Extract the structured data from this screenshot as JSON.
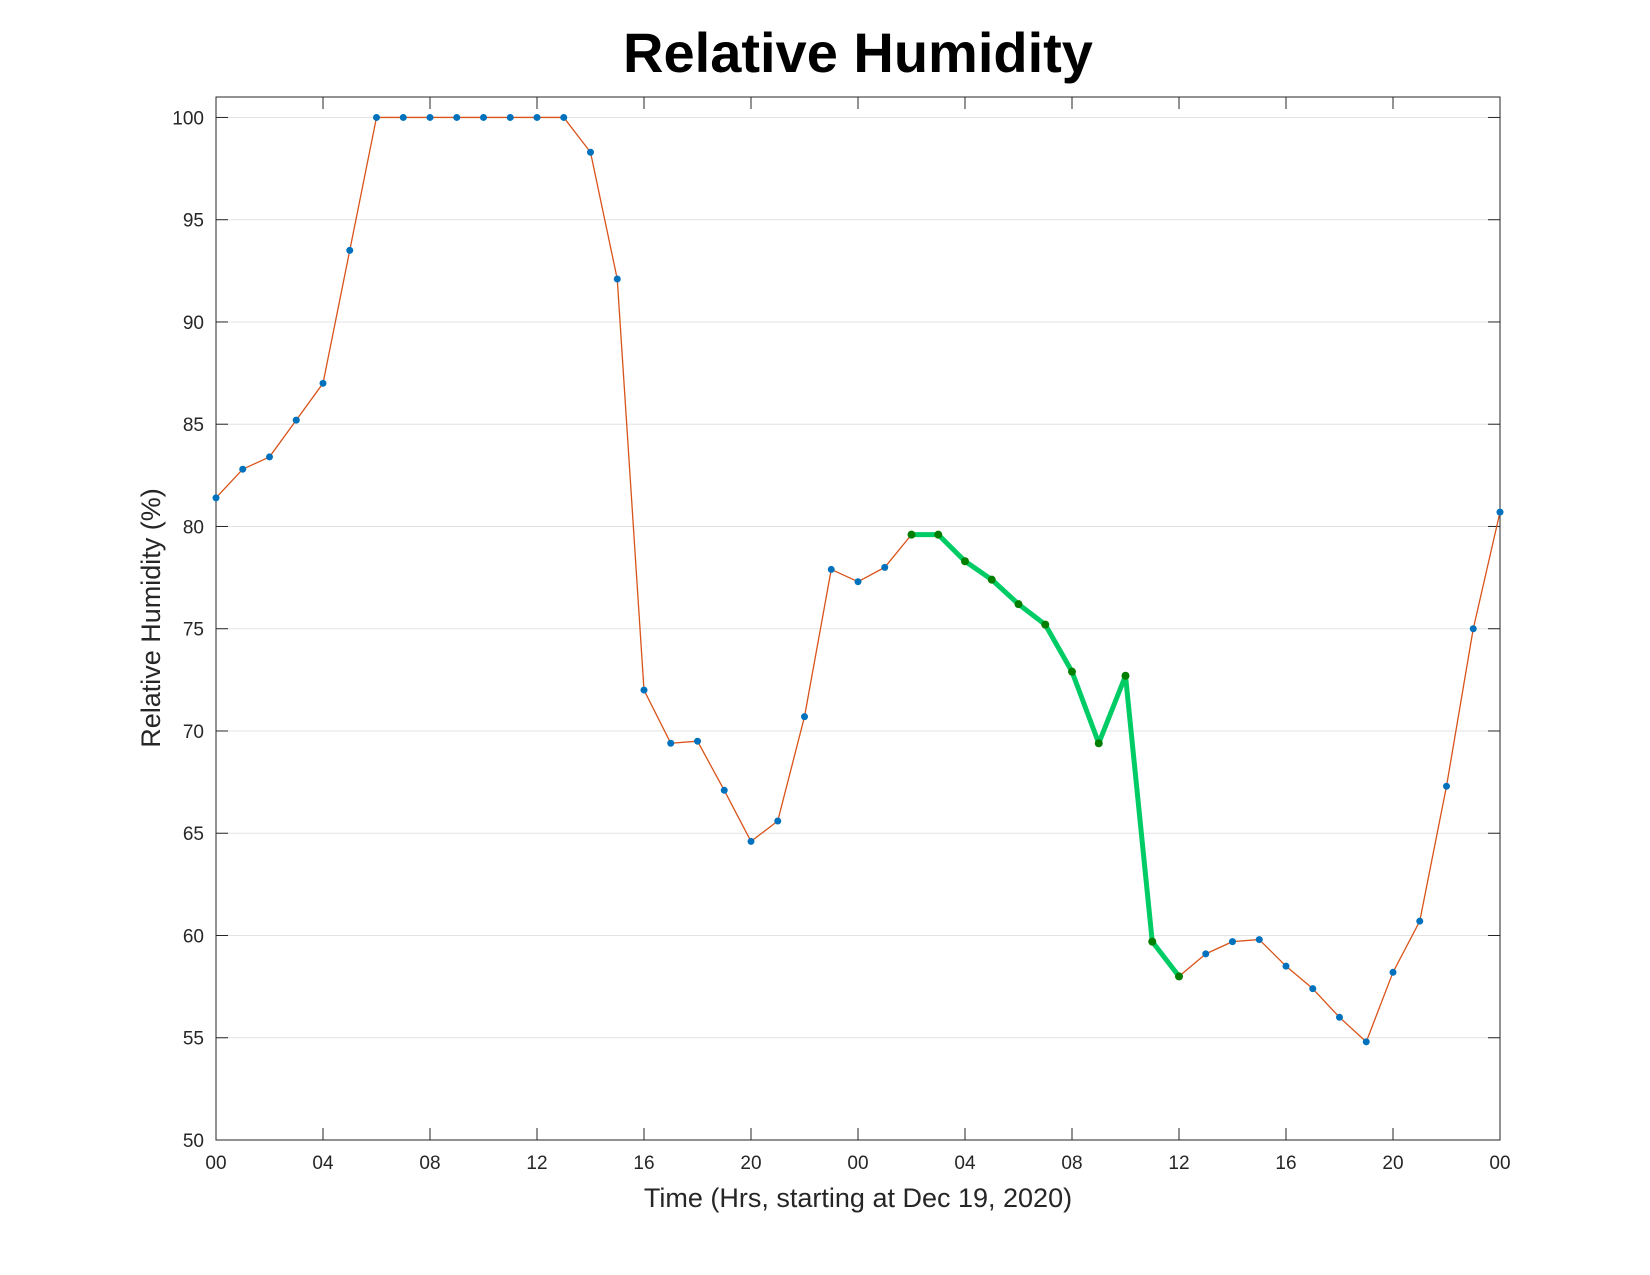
{
  "chart_data": {
    "type": "line",
    "title": "Relative Humidity",
    "xlabel": "Time (Hrs, starting at Dec 19, 2020)",
    "ylabel": "Relative Humidity (%)",
    "x": [
      0,
      1,
      2,
      3,
      4,
      5,
      6,
      7,
      8,
      9,
      10,
      11,
      12,
      13,
      14,
      15,
      16,
      17,
      18,
      19,
      20,
      21,
      22,
      23,
      24,
      25,
      26,
      27,
      28,
      29,
      30,
      31,
      32,
      33,
      34,
      35,
      36,
      37,
      38,
      39,
      40,
      41,
      42,
      43,
      44,
      45,
      46,
      47,
      48
    ],
    "series": [
      {
        "color": "#d95319",
        "marker_color": "#0072bd",
        "values": [
          81.4,
          82.8,
          83.4,
          85.2,
          87.0,
          93.5,
          100,
          100,
          100,
          100,
          100,
          100,
          100,
          100,
          98.3,
          92.1,
          72.0,
          69.4,
          69.5,
          67.1,
          64.6,
          65.6,
          70.7,
          77.9,
          77.3,
          78.0,
          79.6,
          79.6,
          78.3,
          77.4,
          76.2,
          75.2,
          72.9,
          69.4,
          72.7,
          59.7,
          58.0,
          59.1,
          59.7,
          59.8,
          58.5,
          57.4,
          56.0,
          54.8,
          58.2,
          60.7,
          67.3,
          75.0,
          80.7
        ]
      },
      {
        "color": "#00cc66",
        "marker_color": "#007f00",
        "values": [
          null,
          null,
          null,
          null,
          null,
          null,
          null,
          null,
          null,
          null,
          null,
          null,
          null,
          null,
          null,
          null,
          null,
          null,
          null,
          null,
          null,
          null,
          null,
          null,
          null,
          null,
          79.6,
          79.6,
          78.3,
          77.4,
          76.2,
          75.2,
          72.9,
          69.4,
          72.7,
          59.7,
          58.0,
          null,
          null,
          null,
          null,
          null,
          null,
          null,
          null,
          null,
          null,
          null,
          null
        ]
      }
    ],
    "xlim": [
      0,
      48
    ],
    "xticks": [
      {
        "value": 0,
        "label": "00"
      },
      {
        "value": 4,
        "label": "04"
      },
      {
        "value": 8,
        "label": "08"
      },
      {
        "value": 12,
        "label": "12"
      },
      {
        "value": 16,
        "label": "16"
      },
      {
        "value": 20,
        "label": "20"
      },
      {
        "value": 24,
        "label": "00"
      },
      {
        "value": 28,
        "label": "04"
      },
      {
        "value": 32,
        "label": "08"
      },
      {
        "value": 36,
        "label": "12"
      },
      {
        "value": 40,
        "label": "16"
      },
      {
        "value": 44,
        "label": "20"
      },
      {
        "value": 48,
        "label": "00"
      }
    ],
    "ylim": [
      50,
      101
    ],
    "yticks": [
      50,
      55,
      60,
      65,
      70,
      75,
      80,
      85,
      90,
      95,
      100
    ],
    "grid": true
  }
}
